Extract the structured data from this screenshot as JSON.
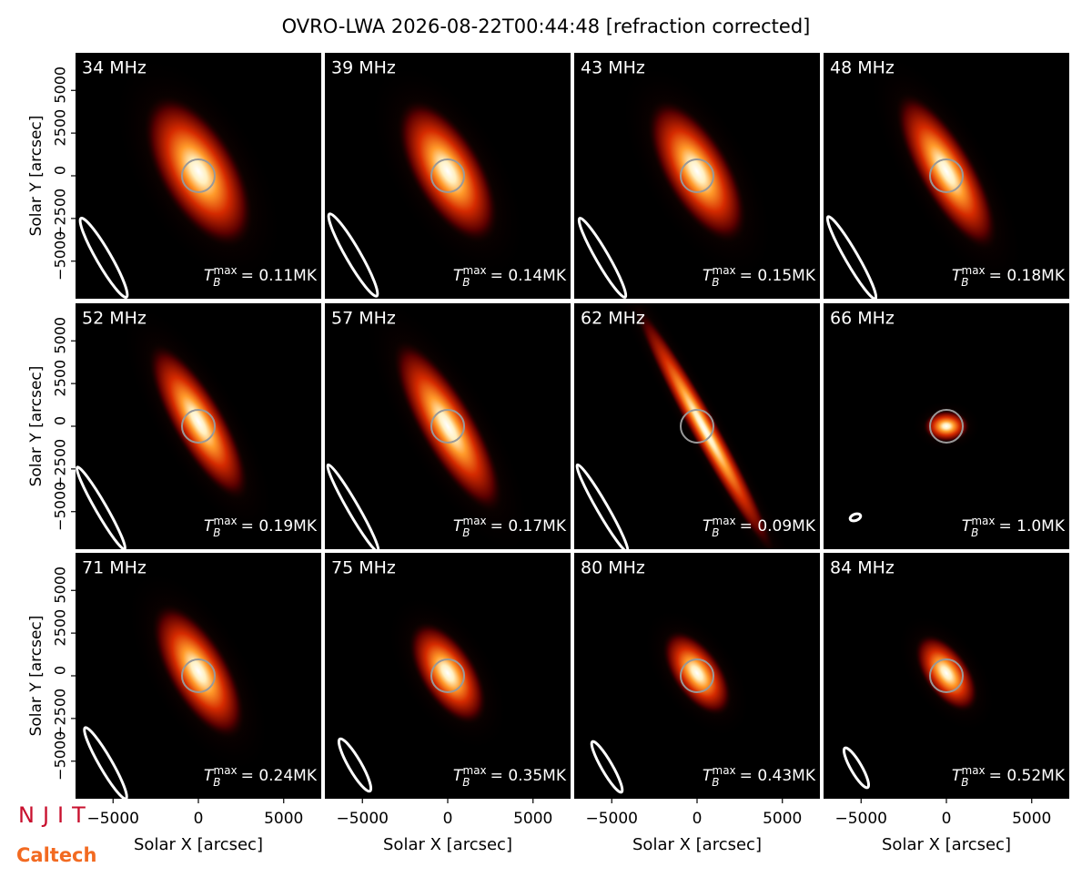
{
  "title": "OVRO-LWA 2026-08-22T00:44:48 [refraction corrected]",
  "logos": [
    "NJIT",
    "Caltech"
  ],
  "chart_data": [
    {
      "type": "image",
      "title": "34 MHz",
      "annotation": {
        "symbol": "T",
        "subscript": "B",
        "superscript": "max",
        "text": "= 0.11MK"
      },
      "xlim": [
        -7200,
        7200
      ],
      "ylim": [
        -7200,
        7200
      ],
      "ylabel": "Solar Y [arcsec]",
      "yticks": [
        {
          "value": -5000,
          "label": "−5000"
        },
        {
          "value": -2500,
          "label": "−2500"
        },
        0,
        2500,
        5000
      ]
    },
    {
      "type": "image",
      "title": "39 MHz",
      "annotation": {
        "symbol": "T",
        "subscript": "B",
        "superscript": "max",
        "text": "= 0.14MK"
      },
      "xlim": [
        -7200,
        7200
      ],
      "ylim": [
        -7200,
        7200
      ]
    },
    {
      "type": "image",
      "title": "43 MHz",
      "annotation": {
        "symbol": "T",
        "subscript": "B",
        "superscript": "max",
        "text": "= 0.15MK"
      },
      "xlim": [
        -7200,
        7200
      ],
      "ylim": [
        -7200,
        7200
      ]
    },
    {
      "type": "image",
      "title": "48 MHz",
      "annotation": {
        "symbol": "T",
        "subscript": "B",
        "superscript": "max",
        "text": "= 0.18MK"
      },
      "xlim": [
        -7200,
        7200
      ],
      "ylim": [
        -7200,
        7200
      ]
    },
    {
      "type": "image",
      "title": "52 MHz",
      "annotation": {
        "symbol": "T",
        "subscript": "B",
        "superscript": "max",
        "text": "= 0.19MK"
      },
      "xlim": [
        -7200,
        7200
      ],
      "ylim": [
        -7200,
        7200
      ],
      "ylabel": "Solar Y [arcsec]",
      "yticks": [
        {
          "value": -5000,
          "label": "−5000"
        },
        {
          "value": -2500,
          "label": "−2500"
        },
        0,
        2500,
        5000
      ]
    },
    {
      "type": "image",
      "title": "57 MHz",
      "annotation": {
        "symbol": "T",
        "subscript": "B",
        "superscript": "max",
        "text": "= 0.17MK"
      },
      "xlim": [
        -7200,
        7200
      ],
      "ylim": [
        -7200,
        7200
      ]
    },
    {
      "type": "image",
      "title": "62 MHz",
      "annotation": {
        "symbol": "T",
        "subscript": "B",
        "superscript": "max",
        "text": "= 0.09MK"
      },
      "xlim": [
        -7200,
        7200
      ],
      "ylim": [
        -7200,
        7200
      ]
    },
    {
      "type": "image",
      "title": "66 MHz",
      "annotation": {
        "symbol": "T",
        "subscript": "B",
        "superscript": "max",
        "text": "= 1.0MK"
      },
      "xlim": [
        -7200,
        7200
      ],
      "ylim": [
        -7200,
        7200
      ]
    },
    {
      "type": "image",
      "title": "71 MHz",
      "annotation": {
        "symbol": "T",
        "subscript": "B",
        "superscript": "max",
        "text": "= 0.24MK"
      },
      "xlim": [
        -7200,
        7200
      ],
      "ylim": [
        -7200,
        7200
      ],
      "ylabel": "Solar Y [arcsec]",
      "yticks": [
        {
          "value": -5000,
          "label": "−5000"
        },
        {
          "value": -2500,
          "label": "−2500"
        },
        0,
        2500,
        5000
      ],
      "xlabel": "Solar X [arcsec]",
      "xticks": [
        {
          "value": -5000,
          "label": "−5000"
        },
        0,
        5000
      ]
    },
    {
      "type": "image",
      "title": "75 MHz",
      "annotation": {
        "symbol": "T",
        "subscript": "B",
        "superscript": "max",
        "text": "= 0.35MK"
      },
      "xlim": [
        -7200,
        7200
      ],
      "ylim": [
        -7200,
        7200
      ],
      "xlabel": "Solar X [arcsec]",
      "xticks": [
        {
          "value": -5000,
          "label": "−5000"
        },
        0,
        5000
      ]
    },
    {
      "type": "image",
      "title": "80 MHz",
      "annotation": {
        "symbol": "T",
        "subscript": "B",
        "superscript": "max",
        "text": "= 0.43MK"
      },
      "xlim": [
        -7200,
        7200
      ],
      "ylim": [
        -7200,
        7200
      ],
      "xlabel": "Solar X [arcsec]",
      "xticks": [
        {
          "value": -5000,
          "label": "−5000"
        },
        0,
        5000
      ]
    },
    {
      "type": "image",
      "title": "84 MHz",
      "annotation": {
        "symbol": "T",
        "subscript": "B",
        "superscript": "max",
        "text": "= 0.52MK"
      },
      "xlim": [
        -7200,
        7200
      ],
      "ylim": [
        -7200,
        7200
      ],
      "xlabel": "Solar X [arcsec]",
      "xticks": [
        {
          "value": -5000,
          "label": "−5000"
        },
        0,
        5000
      ]
    }
  ]
}
